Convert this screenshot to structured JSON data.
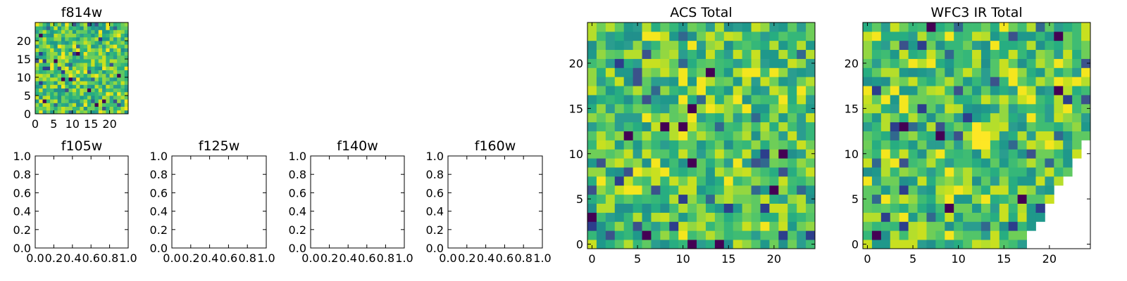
{
  "chart_data": [
    {
      "type": "heatmap",
      "title": "f814w",
      "colormap": "viridis",
      "grid_size": 25,
      "xlim": [
        0,
        25
      ],
      "ylim": [
        0,
        25
      ],
      "x_ticks": [
        "0",
        "5",
        "10",
        "15",
        "20"
      ],
      "y_ticks": [
        "0",
        "5",
        "10",
        "15",
        "20"
      ],
      "dark_cells": [
        [
          2,
          3
        ],
        [
          7,
          9
        ],
        [
          9,
          9
        ],
        [
          14,
          6
        ],
        [
          16,
          2
        ],
        [
          11,
          16
        ],
        [
          18,
          3
        ],
        [
          5,
          14
        ],
        [
          22,
          10
        ],
        [
          1,
          21
        ]
      ]
    },
    {
      "type": "heatmap",
      "title": "f105w",
      "empty": true,
      "xlim": [
        0,
        1
      ],
      "ylim": [
        0,
        1
      ],
      "x_ticks": [
        "0.0",
        "0.2",
        "0.4",
        "0.6",
        "0.8",
        "1.0"
      ],
      "y_ticks": [
        "0.0",
        "0.2",
        "0.4",
        "0.6",
        "0.8",
        "1.0"
      ]
    },
    {
      "type": "heatmap",
      "title": "f125w",
      "empty": true,
      "xlim": [
        0,
        1
      ],
      "ylim": [
        0,
        1
      ],
      "x_ticks": [
        "0.0",
        "0.2",
        "0.4",
        "0.6",
        "0.8",
        "1.0"
      ],
      "y_ticks": [
        "0.0",
        "0.2",
        "0.4",
        "0.6",
        "0.8",
        "1.0"
      ]
    },
    {
      "type": "heatmap",
      "title": "f140w",
      "empty": true,
      "xlim": [
        0,
        1
      ],
      "ylim": [
        0,
        1
      ],
      "x_ticks": [
        "0.0",
        "0.2",
        "0.4",
        "0.6",
        "0.8",
        "1.0"
      ],
      "y_ticks": [
        "0.0",
        "0.2",
        "0.4",
        "0.6",
        "0.8",
        "1.0"
      ]
    },
    {
      "type": "heatmap",
      "title": "f160w",
      "empty": true,
      "xlim": [
        0,
        1
      ],
      "ylim": [
        0,
        1
      ],
      "x_ticks": [
        "0.0",
        "0.2",
        "0.4",
        "0.6",
        "0.8",
        "1.0"
      ],
      "y_ticks": [
        "0.0",
        "0.2",
        "0.4",
        "0.6",
        "0.8",
        "1.0"
      ]
    },
    {
      "type": "heatmap",
      "title": "ACS Total",
      "colormap": "viridis",
      "grid_size": 25,
      "xlim": [
        -0.5,
        24.5
      ],
      "ylim": [
        -0.5,
        24.5
      ],
      "x_ticks": [
        "0",
        "5",
        "10",
        "15",
        "20"
      ],
      "y_ticks": [
        "0",
        "5",
        "10",
        "15",
        "20"
      ],
      "dark_cells": [
        [
          13,
          19
        ],
        [
          11,
          15
        ],
        [
          8,
          13
        ],
        [
          10,
          13
        ],
        [
          4,
          12
        ],
        [
          21,
          10
        ],
        [
          11,
          9
        ],
        [
          20,
          6
        ],
        [
          0,
          3
        ],
        [
          6,
          1
        ],
        [
          11,
          0
        ],
        [
          14,
          0
        ]
      ]
    },
    {
      "type": "heatmap",
      "title": "WFC3 IR Total",
      "colormap": "viridis",
      "grid_size": 25,
      "xlim": [
        -0.5,
        24.5
      ],
      "ylim": [
        -0.5,
        24.5
      ],
      "x_ticks": [
        "0",
        "5",
        "10",
        "15",
        "20"
      ],
      "y_ticks": [
        "0",
        "5",
        "10",
        "15",
        "20"
      ],
      "bright_cells": [
        [
          12,
          12
        ],
        [
          13,
          12
        ],
        [
          12,
          11
        ],
        [
          13,
          11
        ],
        [
          12,
          13
        ]
      ],
      "dark_cells": [
        [
          7,
          24
        ],
        [
          21,
          23
        ],
        [
          21,
          17
        ],
        [
          4,
          13
        ],
        [
          8,
          12
        ],
        [
          17,
          5
        ],
        [
          1,
          1
        ],
        [
          9,
          4
        ]
      ],
      "masked_region": "lower-right triangle"
    }
  ]
}
